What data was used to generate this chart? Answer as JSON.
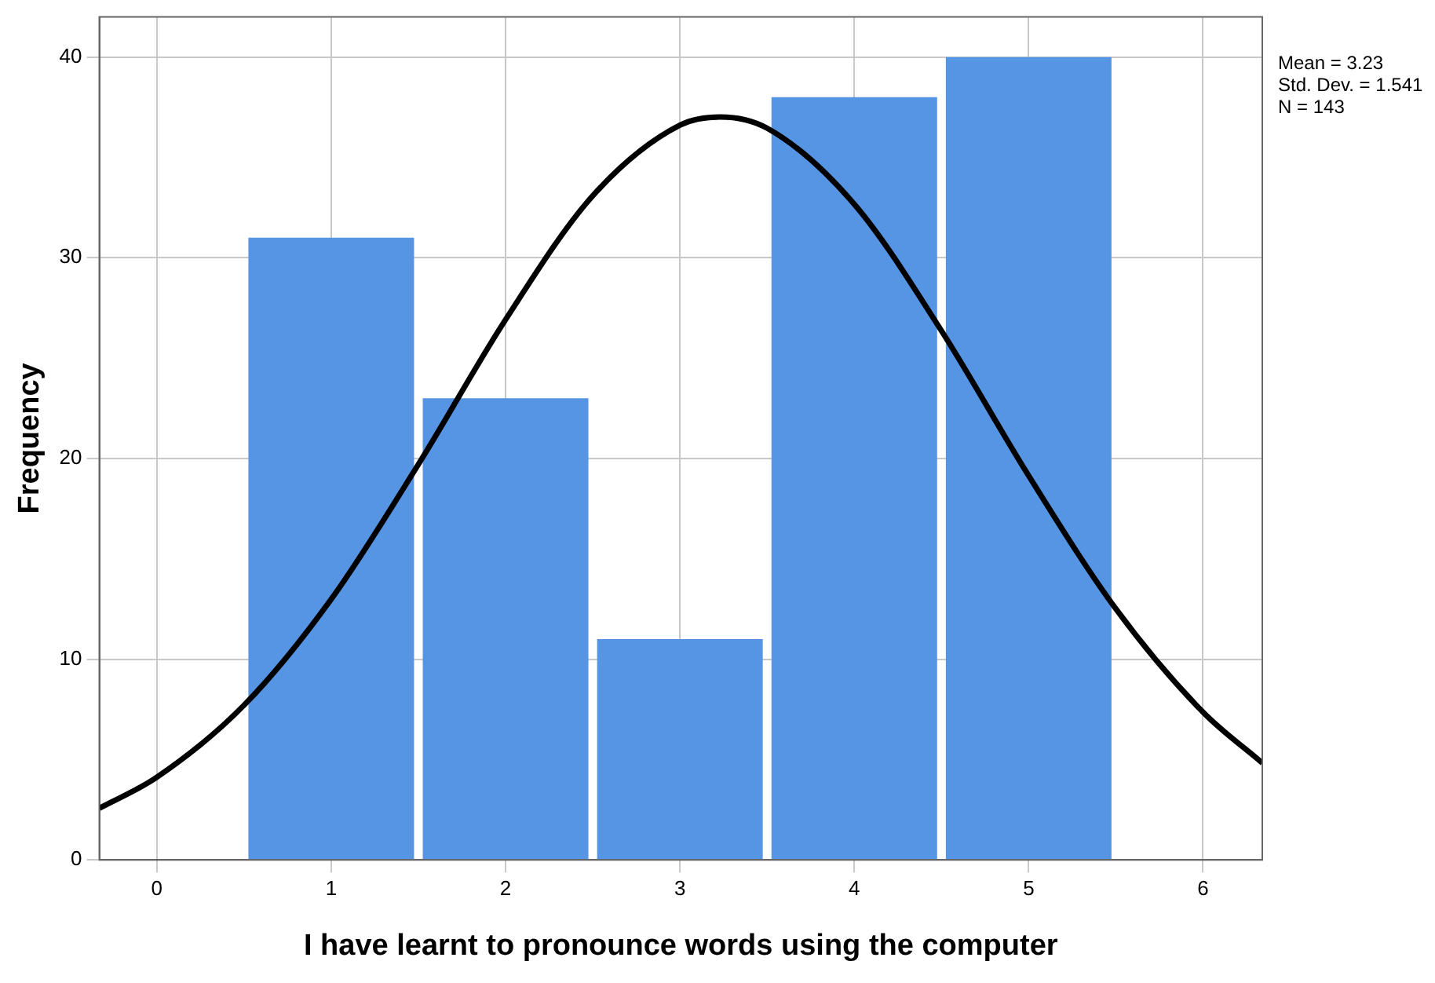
{
  "chart_data": {
    "type": "histogram",
    "xlabel": "I have learnt to pronounce words using the computer",
    "ylabel": "Frequency",
    "bins": [
      0.5,
      1.5,
      2.5,
      3.5,
      4.5,
      5.5
    ],
    "values": [
      31,
      23,
      11,
      38,
      40
    ],
    "color": "#5595e3",
    "series": [
      {
        "type": "line",
        "color": "#000000",
        "x": [
          -0.33,
          0,
          0.5,
          1,
          1.5,
          2,
          2.5,
          3,
          3.23,
          3.5,
          4,
          4.5,
          5,
          5.5,
          6,
          6.34
        ],
        "values": [
          2.57,
          4.12,
          7.71,
          12.99,
          19.71,
          26.92,
          33.09,
          36.61,
          37.02,
          36.46,
          32.67,
          26.36,
          19.14,
          12.51,
          7.36,
          4.83
        ]
      }
    ],
    "xlim": [
      -0.33,
      6.34
    ],
    "xticks": [
      0,
      1,
      2,
      3,
      4,
      5,
      6
    ],
    "ylim": [
      0,
      42
    ],
    "yticks": [
      0,
      10,
      20,
      30,
      40
    ],
    "grid": true,
    "legend": false,
    "marker": "none",
    "line_style": "solid",
    "annotations": [
      "Mean = 3.23",
      "Std. Dev. = 1.541",
      "N = 143"
    ]
  }
}
